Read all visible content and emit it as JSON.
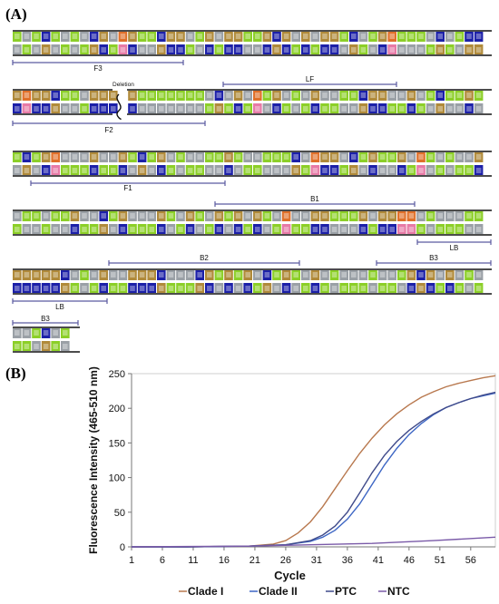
{
  "panel_a": {
    "label": "(A)",
    "deletion_label": "Deletion",
    "regions": [
      {
        "name": "F3"
      },
      {
        "name": "F2"
      },
      {
        "name": "LF"
      },
      {
        "name": "F1"
      },
      {
        "name": "B1"
      },
      {
        "name": "LB"
      },
      {
        "name": "B2"
      },
      {
        "name": "B3"
      },
      {
        "name": "LB"
      },
      {
        "name": "B3"
      }
    ],
    "base_colors": {
      "A": "#9aa0a6",
      "T": "#8ccf28",
      "G": "#b08a3a",
      "C": "#1c20a8",
      "X": "#e0702a",
      "P": "#e77aa6"
    }
  },
  "panel_b": {
    "label": "(B)",
    "chart_data": {
      "type": "line",
      "xlabel": "Cycle",
      "ylabel": "Fluorescence Intensity (465-510 nm)",
      "xlim": [
        1,
        60
      ],
      "ylim": [
        0,
        250
      ],
      "xticks": [
        1,
        6,
        11,
        16,
        21,
        26,
        31,
        36,
        41,
        46,
        51,
        56
      ],
      "yticks": [
        0,
        50,
        100,
        150,
        200,
        250
      ],
      "grid": false,
      "legend_position": "bottom",
      "series": [
        {
          "name": "Clade I",
          "color": "#b8784e",
          "x": [
            1,
            10,
            20,
            24,
            26,
            28,
            30,
            32,
            34,
            36,
            38,
            40,
            42,
            44,
            46,
            48,
            50,
            52,
            54,
            56,
            58,
            60
          ],
          "y": [
            0,
            0,
            1,
            4,
            9,
            20,
            36,
            58,
            84,
            110,
            135,
            157,
            176,
            192,
            205,
            216,
            224,
            231,
            236,
            240,
            244,
            247
          ]
        },
        {
          "name": "Clade II",
          "color": "#3d66c4",
          "x": [
            1,
            10,
            20,
            26,
            30,
            32,
            34,
            36,
            38,
            40,
            42,
            44,
            46,
            48,
            50,
            52,
            54,
            56,
            58,
            60
          ],
          "y": [
            0,
            0,
            1,
            3,
            8,
            14,
            24,
            40,
            62,
            90,
            118,
            142,
            162,
            178,
            191,
            201,
            208,
            214,
            218,
            222
          ]
        },
        {
          "name": "PTC",
          "color": "#3f4a8a",
          "x": [
            1,
            10,
            20,
            26,
            30,
            32,
            34,
            36,
            38,
            40,
            42,
            44,
            46,
            48,
            50,
            52,
            54,
            56,
            58,
            60
          ],
          "y": [
            0,
            0,
            1,
            3,
            9,
            17,
            30,
            50,
            78,
            107,
            132,
            152,
            168,
            181,
            192,
            201,
            208,
            214,
            219,
            223
          ]
        },
        {
          "name": "NTC",
          "color": "#7a5aa8",
          "x": [
            1,
            10,
            20,
            30,
            40,
            50,
            60
          ],
          "y": [
            0,
            0.5,
            1,
            3,
            5,
            9,
            14
          ]
        }
      ]
    }
  }
}
